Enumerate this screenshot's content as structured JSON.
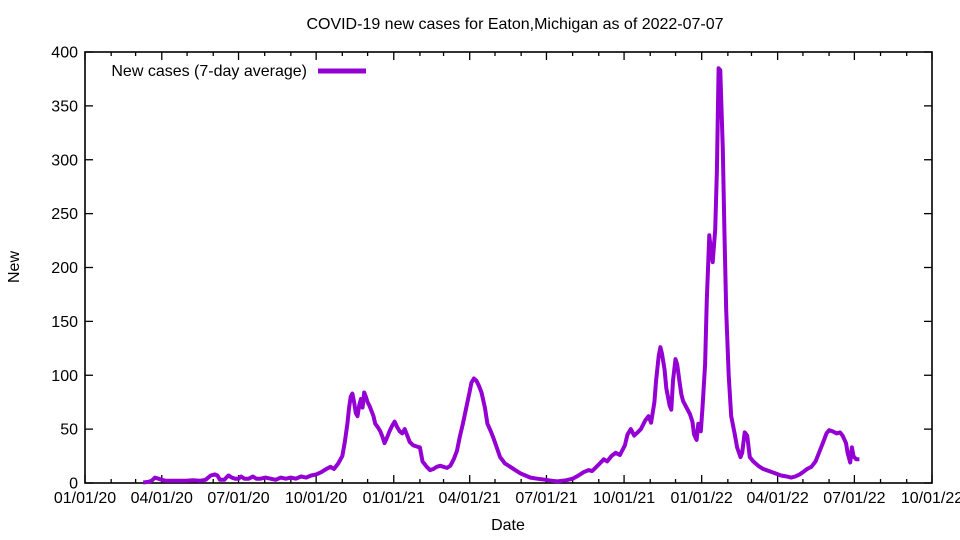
{
  "title": "COVID-19 new cases for Eaton,Michigan as of 2022-07-07",
  "colors": {
    "line": "#9400D3",
    "axis": "#000000",
    "text": "#000000",
    "background": "#ffffff"
  },
  "chart_data": {
    "type": "line",
    "title": "COVID-19 new cases for Eaton,Michigan as of 2022-07-07",
    "xlabel": "Date",
    "ylabel": "New",
    "grid": false,
    "legend_position": "top-left-inside",
    "xlim": [
      "2020-01-01",
      "2022-10-01"
    ],
    "ylim": [
      0,
      400
    ],
    "y_ticks": [
      0,
      50,
      100,
      150,
      200,
      250,
      300,
      350,
      400
    ],
    "x_minor_tick_interval": "1 month",
    "x_ticks": [
      {
        "date": "2020-01-01",
        "label": "01/01/20"
      },
      {
        "date": "2020-04-01",
        "label": "04/01/20"
      },
      {
        "date": "2020-07-01",
        "label": "07/01/20"
      },
      {
        "date": "2020-10-01",
        "label": "10/01/20"
      },
      {
        "date": "2021-01-01",
        "label": "01/01/21"
      },
      {
        "date": "2021-04-01",
        "label": "04/01/21"
      },
      {
        "date": "2021-07-01",
        "label": "07/01/21"
      },
      {
        "date": "2021-10-01",
        "label": "10/01/21"
      },
      {
        "date": "2022-01-01",
        "label": "01/01/22"
      },
      {
        "date": "2022-04-01",
        "label": "04/01/22"
      },
      {
        "date": "2022-07-01",
        "label": "07/01/22"
      },
      {
        "date": "2022-10-01",
        "label": "10/01/22"
      }
    ],
    "series": [
      {
        "name": "New cases (7-day average)",
        "color": "#9400D3",
        "points": [
          [
            "2020-03-10",
            0.5
          ],
          [
            "2020-03-16",
            1
          ],
          [
            "2020-03-20",
            2
          ],
          [
            "2020-03-24",
            5
          ],
          [
            "2020-03-28",
            4
          ],
          [
            "2020-04-01",
            3
          ],
          [
            "2020-04-06",
            2
          ],
          [
            "2020-04-14",
            2
          ],
          [
            "2020-04-22",
            2
          ],
          [
            "2020-04-30",
            2
          ],
          [
            "2020-05-08",
            2.5
          ],
          [
            "2020-05-16",
            2
          ],
          [
            "2020-05-23",
            3
          ],
          [
            "2020-05-29",
            7
          ],
          [
            "2020-06-03",
            8
          ],
          [
            "2020-06-06",
            7
          ],
          [
            "2020-06-09",
            3
          ],
          [
            "2020-06-14",
            3
          ],
          [
            "2020-06-19",
            7
          ],
          [
            "2020-06-23",
            5
          ],
          [
            "2020-06-27",
            4
          ],
          [
            "2020-07-01",
            4
          ],
          [
            "2020-07-04",
            6
          ],
          [
            "2020-07-08",
            4
          ],
          [
            "2020-07-13",
            4
          ],
          [
            "2020-07-18",
            6
          ],
          [
            "2020-07-22",
            4
          ],
          [
            "2020-07-27",
            4
          ],
          [
            "2020-08-02",
            5
          ],
          [
            "2020-08-08",
            4
          ],
          [
            "2020-08-14",
            3
          ],
          [
            "2020-08-20",
            5
          ],
          [
            "2020-08-26",
            4
          ],
          [
            "2020-09-01",
            5
          ],
          [
            "2020-09-07",
            4
          ],
          [
            "2020-09-13",
            6
          ],
          [
            "2020-09-19",
            5
          ],
          [
            "2020-09-25",
            7
          ],
          [
            "2020-10-01",
            8
          ],
          [
            "2020-10-07",
            10
          ],
          [
            "2020-10-13",
            13
          ],
          [
            "2020-10-18",
            15
          ],
          [
            "2020-10-22",
            13
          ],
          [
            "2020-10-27",
            18
          ],
          [
            "2020-11-01",
            25
          ],
          [
            "2020-11-04",
            38
          ],
          [
            "2020-11-07",
            55
          ],
          [
            "2020-11-09",
            70
          ],
          [
            "2020-11-11",
            80
          ],
          [
            "2020-11-13",
            83
          ],
          [
            "2020-11-15",
            75
          ],
          [
            "2020-11-17",
            65
          ],
          [
            "2020-11-19",
            62
          ],
          [
            "2020-11-21",
            72
          ],
          [
            "2020-11-23",
            78
          ],
          [
            "2020-11-25",
            70
          ],
          [
            "2020-11-27",
            84
          ],
          [
            "2020-11-29",
            80
          ],
          [
            "2020-12-01",
            75
          ],
          [
            "2020-12-03",
            72
          ],
          [
            "2020-12-05",
            68
          ],
          [
            "2020-12-08",
            62
          ],
          [
            "2020-12-10",
            55
          ],
          [
            "2020-12-13",
            52
          ],
          [
            "2020-12-16",
            48
          ],
          [
            "2020-12-19",
            42
          ],
          [
            "2020-12-21",
            37
          ],
          [
            "2020-12-24",
            42
          ],
          [
            "2020-12-27",
            48
          ],
          [
            "2020-12-30",
            53
          ],
          [
            "2021-01-02",
            57
          ],
          [
            "2021-01-05",
            52
          ],
          [
            "2021-01-08",
            48
          ],
          [
            "2021-01-11",
            46
          ],
          [
            "2021-01-14",
            50
          ],
          [
            "2021-01-17",
            44
          ],
          [
            "2021-01-20",
            38
          ],
          [
            "2021-01-24",
            35
          ],
          [
            "2021-01-28",
            34
          ],
          [
            "2021-02-01",
            33
          ],
          [
            "2021-02-04",
            20
          ],
          [
            "2021-02-09",
            15
          ],
          [
            "2021-02-13",
            12
          ],
          [
            "2021-02-17",
            13
          ],
          [
            "2021-02-21",
            15
          ],
          [
            "2021-02-25",
            16
          ],
          [
            "2021-03-01",
            15
          ],
          [
            "2021-03-05",
            14
          ],
          [
            "2021-03-09",
            16
          ],
          [
            "2021-03-13",
            22
          ],
          [
            "2021-03-17",
            30
          ],
          [
            "2021-03-20",
            42
          ],
          [
            "2021-03-24",
            55
          ],
          [
            "2021-03-28",
            70
          ],
          [
            "2021-04-01",
            85
          ],
          [
            "2021-04-03",
            93
          ],
          [
            "2021-04-06",
            97
          ],
          [
            "2021-04-09",
            95
          ],
          [
            "2021-04-12",
            90
          ],
          [
            "2021-04-15",
            84
          ],
          [
            "2021-04-19",
            70
          ],
          [
            "2021-04-22",
            55
          ],
          [
            "2021-04-26",
            48
          ],
          [
            "2021-04-29",
            42
          ],
          [
            "2021-05-03",
            33
          ],
          [
            "2021-05-07",
            24
          ],
          [
            "2021-05-13",
            18
          ],
          [
            "2021-05-19",
            15
          ],
          [
            "2021-05-25",
            12
          ],
          [
            "2021-05-31",
            9
          ],
          [
            "2021-06-06",
            7
          ],
          [
            "2021-06-12",
            5
          ],
          [
            "2021-06-20",
            4
          ],
          [
            "2021-06-30",
            3
          ],
          [
            "2021-07-08",
            2
          ],
          [
            "2021-07-14",
            1.5
          ],
          [
            "2021-07-24",
            2.5
          ],
          [
            "2021-08-01",
            4
          ],
          [
            "2021-08-08",
            7
          ],
          [
            "2021-08-14",
            10
          ],
          [
            "2021-08-20",
            12
          ],
          [
            "2021-08-24",
            11
          ],
          [
            "2021-08-28",
            14
          ],
          [
            "2021-09-02",
            18
          ],
          [
            "2021-09-07",
            22
          ],
          [
            "2021-09-11",
            20
          ],
          [
            "2021-09-16",
            25
          ],
          [
            "2021-09-21",
            28
          ],
          [
            "2021-09-26",
            26
          ],
          [
            "2021-10-02",
            35
          ],
          [
            "2021-10-05",
            45
          ],
          [
            "2021-10-09",
            50
          ],
          [
            "2021-10-13",
            44
          ],
          [
            "2021-10-17",
            47
          ],
          [
            "2021-10-21",
            50
          ],
          [
            "2021-10-26",
            58
          ],
          [
            "2021-10-30",
            62
          ],
          [
            "2021-11-02",
            56
          ],
          [
            "2021-11-06",
            75
          ],
          [
            "2021-11-08",
            95
          ],
          [
            "2021-11-11",
            118
          ],
          [
            "2021-11-13",
            126
          ],
          [
            "2021-11-15",
            120
          ],
          [
            "2021-11-18",
            105
          ],
          [
            "2021-11-20",
            88
          ],
          [
            "2021-11-24",
            72
          ],
          [
            "2021-11-26",
            68
          ],
          [
            "2021-11-28",
            95
          ],
          [
            "2021-12-01",
            115
          ],
          [
            "2021-12-03",
            110
          ],
          [
            "2021-12-06",
            92
          ],
          [
            "2021-12-08",
            82
          ],
          [
            "2021-12-10",
            76
          ],
          [
            "2021-12-14",
            70
          ],
          [
            "2021-12-18",
            64
          ],
          [
            "2021-12-21",
            57
          ],
          [
            "2021-12-23",
            45
          ],
          [
            "2021-12-26",
            40
          ],
          [
            "2021-12-28",
            55
          ],
          [
            "2021-12-31",
            48
          ],
          [
            "2022-01-02",
            70
          ],
          [
            "2022-01-05",
            110
          ],
          [
            "2022-01-07",
            170
          ],
          [
            "2022-01-10",
            230
          ],
          [
            "2022-01-12",
            215
          ],
          [
            "2022-01-14",
            205
          ],
          [
            "2022-01-17",
            235
          ],
          [
            "2022-01-19",
            290
          ],
          [
            "2022-01-21",
            385
          ],
          [
            "2022-01-23",
            383
          ],
          [
            "2022-01-26",
            310
          ],
          [
            "2022-01-28",
            230
          ],
          [
            "2022-01-30",
            160
          ],
          [
            "2022-02-02",
            100
          ],
          [
            "2022-02-05",
            62
          ],
          [
            "2022-02-09",
            46
          ],
          [
            "2022-02-12",
            33
          ],
          [
            "2022-02-16",
            24
          ],
          [
            "2022-02-18",
            28
          ],
          [
            "2022-02-21",
            47
          ],
          [
            "2022-02-24",
            44
          ],
          [
            "2022-02-27",
            24
          ],
          [
            "2022-03-03",
            20
          ],
          [
            "2022-03-09",
            16
          ],
          [
            "2022-03-15",
            13
          ],
          [
            "2022-03-22",
            11
          ],
          [
            "2022-03-29",
            9
          ],
          [
            "2022-04-05",
            7
          ],
          [
            "2022-04-12",
            6
          ],
          [
            "2022-04-17",
            5
          ],
          [
            "2022-04-22",
            6
          ],
          [
            "2022-04-27",
            8
          ],
          [
            "2022-05-01",
            10
          ],
          [
            "2022-05-06",
            13
          ],
          [
            "2022-05-11",
            15
          ],
          [
            "2022-05-16",
            20
          ],
          [
            "2022-05-20",
            28
          ],
          [
            "2022-05-25",
            38
          ],
          [
            "2022-05-29",
            46
          ],
          [
            "2022-06-01",
            49
          ],
          [
            "2022-06-05",
            48
          ],
          [
            "2022-06-10",
            46
          ],
          [
            "2022-06-14",
            47
          ],
          [
            "2022-06-17",
            44
          ],
          [
            "2022-06-21",
            37
          ],
          [
            "2022-06-23",
            28
          ],
          [
            "2022-06-26",
            19
          ],
          [
            "2022-06-28",
            33
          ],
          [
            "2022-06-30",
            25
          ],
          [
            "2022-07-03",
            22
          ],
          [
            "2022-07-07",
            22
          ]
        ]
      }
    ]
  }
}
